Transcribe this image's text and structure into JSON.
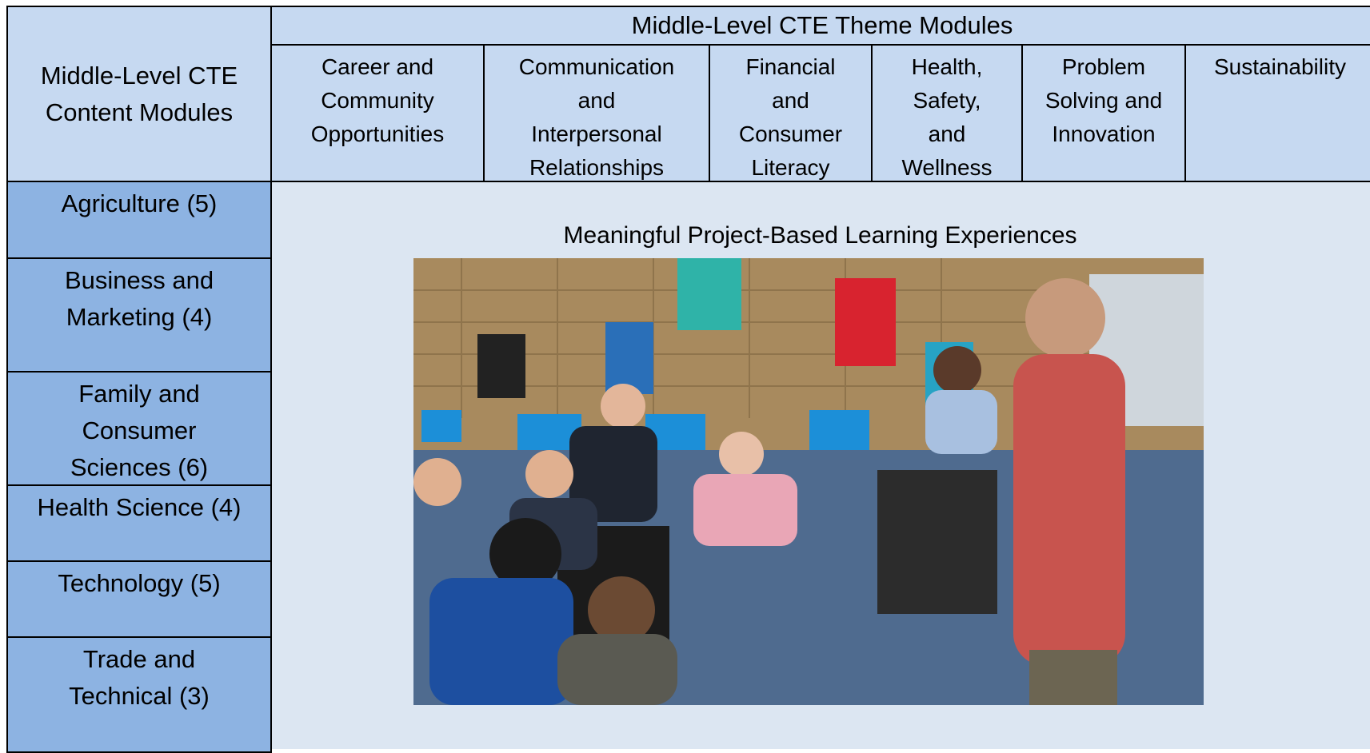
{
  "corner": {
    "lines": [
      "Middle-Level CTE",
      "Content Modules"
    ]
  },
  "theme_title": "Middle-Level CTE Theme Modules",
  "themes": [
    {
      "lines": [
        "Career and",
        "Community",
        "Opportunities"
      ]
    },
    {
      "lines": [
        "Communication",
        "and",
        "Interpersonal",
        "Relationships"
      ]
    },
    {
      "lines": [
        "Financial",
        "and",
        "Consumer",
        "Literacy"
      ]
    },
    {
      "lines": [
        "Health,",
        "Safety,",
        "and",
        "Wellness"
      ]
    },
    {
      "lines": [
        "Problem",
        "Solving and",
        "Innovation"
      ]
    },
    {
      "lines": [
        "Sustainability"
      ]
    }
  ],
  "content_modules": [
    {
      "lines": [
        "Agriculture (5)"
      ]
    },
    {
      "lines": [
        "Business and",
        "Marketing (4)"
      ]
    },
    {
      "lines": [
        "Family and",
        "Consumer",
        "Sciences (6)"
      ]
    },
    {
      "lines": [
        "Health Science (4)"
      ]
    },
    {
      "lines": [
        "Technology (5)"
      ]
    },
    {
      "lines": [
        "Trade and",
        "Technical (3)"
      ]
    }
  ],
  "caption": "Meaningful Project-Based Learning Experiences"
}
